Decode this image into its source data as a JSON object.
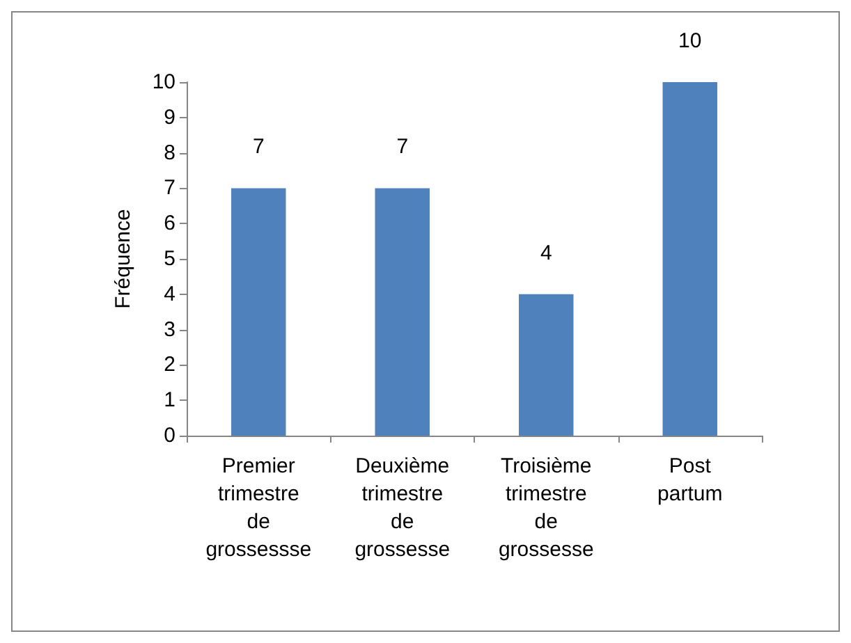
{
  "chart_data": {
    "type": "bar",
    "ylabel": "Fréquence",
    "categories": [
      "Premier\ntrimestre\nde\ngrossessse",
      "Deuxième\ntrimestre\nde\ngrossesse",
      "Troisième\ntrimestre\nde\ngrossesse",
      "Post\npartum"
    ],
    "values": [
      7,
      7,
      4,
      10
    ],
    "color": "#4f81bd",
    "ylim": [
      0,
      10
    ],
    "yticks": [
      0,
      1,
      2,
      3,
      4,
      5,
      6,
      7,
      8,
      9,
      10
    ],
    "grid": false,
    "data_labels": true
  }
}
